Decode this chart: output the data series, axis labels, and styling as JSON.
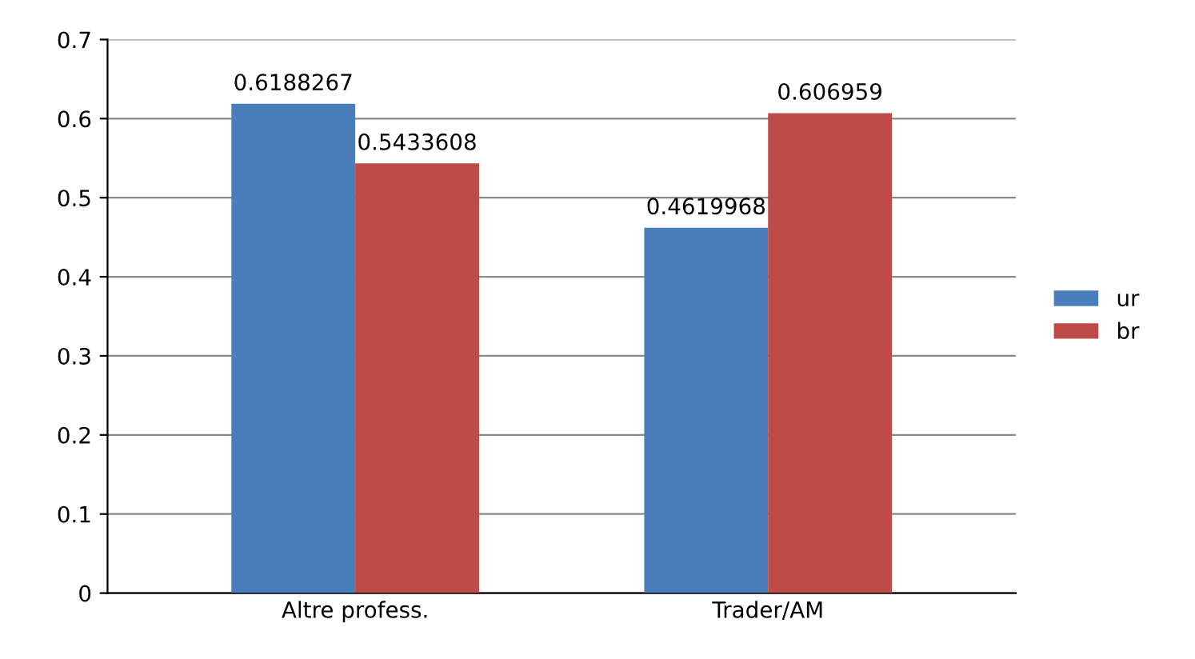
{
  "chart_data": {
    "type": "bar",
    "categories": [
      "Altre profess.",
      "Trader/AM"
    ],
    "series": [
      {
        "name": "ur",
        "color": "#4a7ebb",
        "values": [
          0.6188267,
          0.4619968
        ]
      },
      {
        "name": "br",
        "color": "#be4b48",
        "values": [
          0.5433608,
          0.606959
        ]
      }
    ],
    "ylim": [
      0,
      0.7
    ],
    "yticks": [
      0,
      0.1,
      0.2,
      0.3,
      0.4,
      0.5,
      0.6,
      0.7
    ],
    "grid": "y",
    "legend": "right",
    "data_labels": true
  }
}
